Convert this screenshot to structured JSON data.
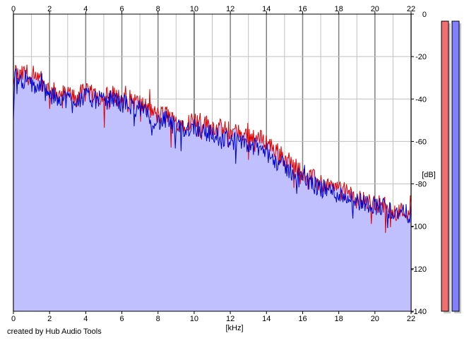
{
  "chart_data": {
    "type": "area",
    "title": "",
    "xlabel": "[kHz]",
    "ylabel": "[dB]",
    "x_ticks": [
      0,
      2,
      4,
      6,
      8,
      10,
      12,
      14,
      16,
      18,
      20,
      22
    ],
    "y_ticks": [
      0,
      -20,
      -40,
      -60,
      -80,
      -100,
      -120,
      -140
    ],
    "xlim": [
      0,
      22
    ],
    "ylim": [
      -140,
      0
    ],
    "grid": true,
    "credit": "created by Hub Audio Tools",
    "colors": {
      "fill": "#c0c0ff",
      "left_channel": "#e00000",
      "right_channel": "#0000cc",
      "major_grid": "#808080",
      "minor_grid": "#c0c0c0",
      "left_meter": "#f07070",
      "right_meter": "#8080ff"
    },
    "series": [
      {
        "color": "#e00000",
        "x": [
          0,
          0.3,
          0.7,
          1.0,
          1.5,
          2.0,
          2.5,
          3.0,
          3.5,
          4.0,
          4.5,
          5.0,
          5.5,
          6.0,
          6.5,
          7.0,
          7.5,
          8.0,
          8.5,
          9.0,
          9.5,
          10.0,
          10.5,
          11.0,
          11.5,
          12.0,
          12.5,
          13.0,
          13.5,
          14.0,
          14.5,
          15.0,
          15.5,
          16.0,
          16.5,
          17.0,
          17.5,
          18.0,
          18.5,
          19.0,
          19.5,
          20.0,
          20.5,
          21.0,
          21.5,
          22.0
        ],
        "values": [
          -25,
          -30,
          -27,
          -32,
          -31,
          -36,
          -37,
          -38,
          -38,
          -37,
          -38,
          -39,
          -38,
          -40,
          -40,
          -42,
          -45,
          -48,
          -47,
          -51,
          -51,
          -50,
          -51,
          -53,
          -54,
          -55,
          -56,
          -57,
          -58,
          -60,
          -64,
          -68,
          -71,
          -74,
          -77,
          -80,
          -81,
          -83,
          -84,
          -87,
          -88,
          -89,
          -90,
          -92,
          -93,
          -93
        ]
      },
      {
        "color": "#0000cc",
        "x": [
          0,
          0.3,
          0.7,
          1.0,
          1.5,
          2.0,
          2.5,
          3.0,
          3.5,
          4.0,
          4.5,
          5.0,
          5.5,
          6.0,
          6.5,
          7.0,
          7.5,
          8.0,
          8.5,
          9.0,
          9.5,
          10.0,
          10.5,
          11.0,
          11.5,
          12.0,
          12.5,
          13.0,
          13.5,
          14.0,
          14.5,
          15.0,
          15.5,
          16.0,
          16.5,
          17.0,
          17.5,
          18.0,
          18.5,
          19.0,
          19.5,
          20.0,
          20.5,
          21.0,
          21.5,
          22.0
        ],
        "values": [
          -28,
          -32,
          -30,
          -34,
          -34,
          -39,
          -39,
          -40,
          -40,
          -39,
          -40,
          -41,
          -40,
          -42,
          -43,
          -45,
          -48,
          -51,
          -50,
          -54,
          -54,
          -53,
          -55,
          -57,
          -58,
          -59,
          -61,
          -62,
          -63,
          -65,
          -69,
          -72,
          -75,
          -77,
          -80,
          -82,
          -83,
          -85,
          -86,
          -88,
          -89,
          -90,
          -91,
          -93,
          -94,
          -94
        ]
      }
    ],
    "level_meters": [
      {
        "color": "#f07070",
        "level_db": 0
      },
      {
        "color": "#8080ff",
        "level_db": 0
      }
    ]
  }
}
